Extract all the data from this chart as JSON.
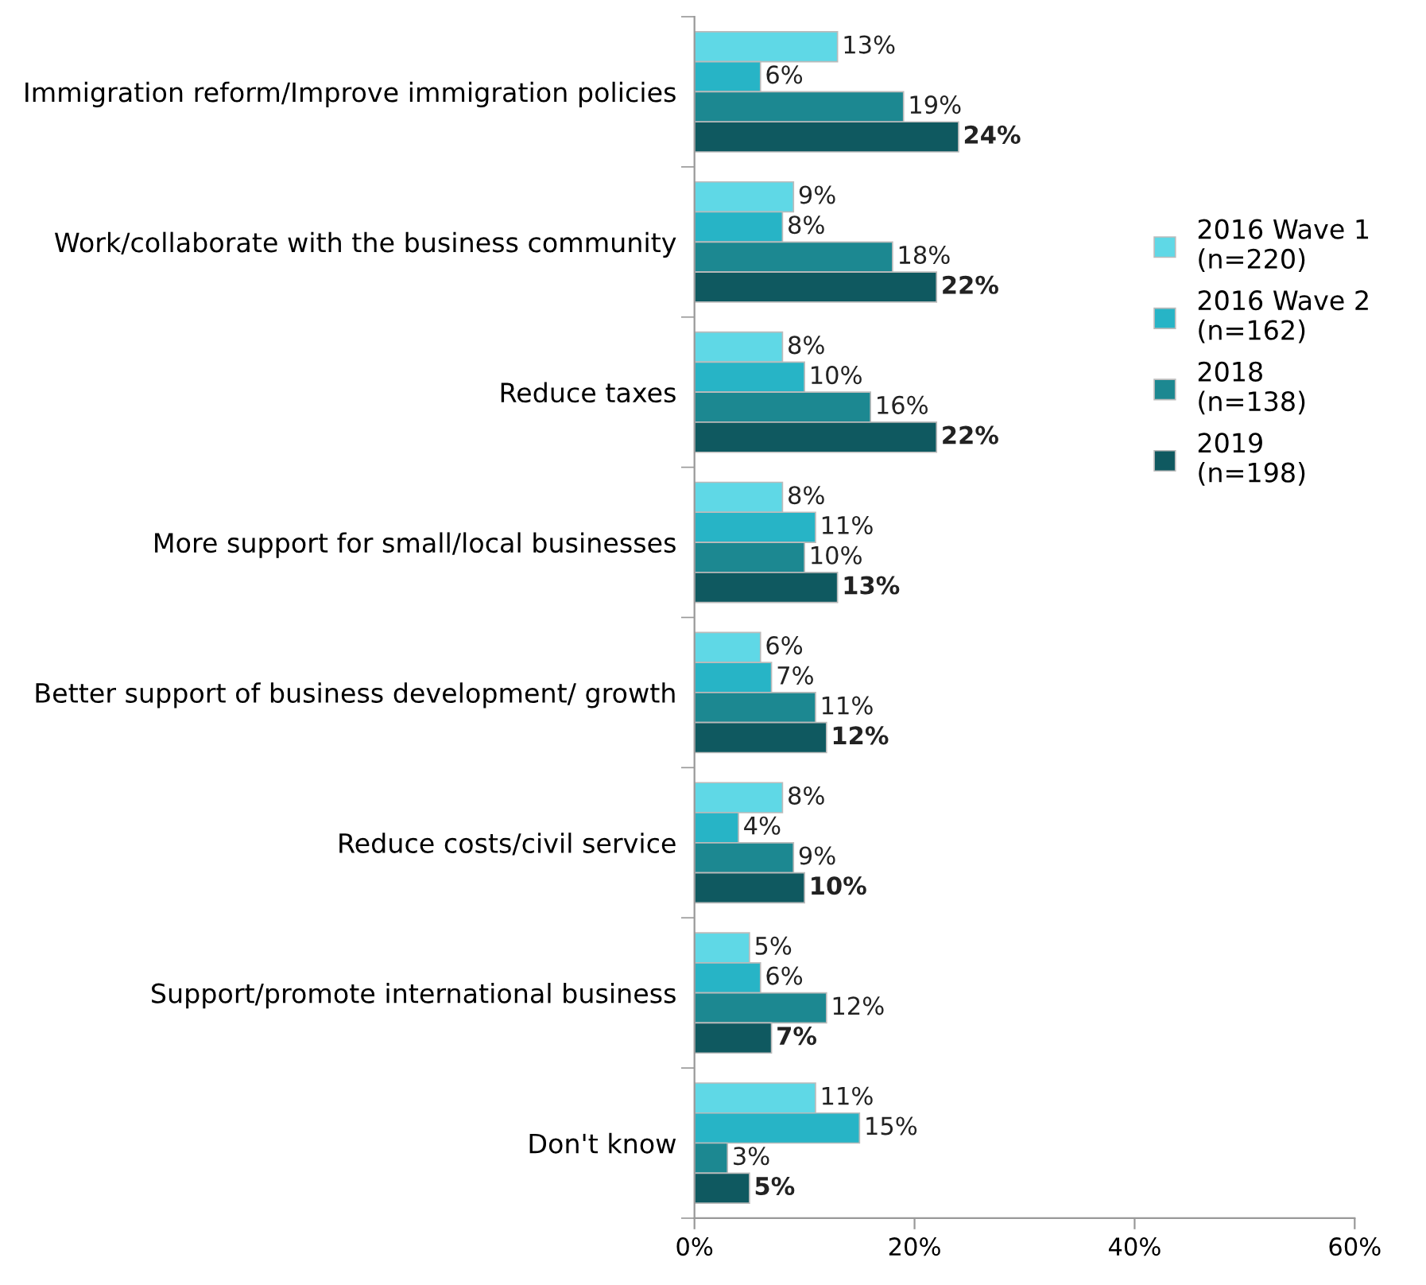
{
  "chart_data": {
    "type": "bar",
    "orientation": "horizontal",
    "categories": [
      "Immigration reform/Improve immigration policies",
      "Work/collaborate with the business community",
      "Reduce taxes",
      "More support for small/local businesses",
      "Better support of business development/ growth",
      "Reduce costs/civil service",
      "Support/promote international business",
      "Don't know"
    ],
    "series": [
      {
        "name": "2016 Wave 1\n(n=220)",
        "color": "#5fd8e6",
        "values": [
          13,
          9,
          8,
          8,
          6,
          8,
          5,
          11
        ],
        "value_labels": [
          "13%",
          "9%",
          "8%",
          "8%",
          "6%",
          "8%",
          "5%",
          "11%"
        ]
      },
      {
        "name": "2016 Wave 2\n(n=162)",
        "color": "#27b4c6",
        "values": [
          6,
          8,
          10,
          11,
          7,
          4,
          6,
          15
        ],
        "value_labels": [
          "6%",
          "8%",
          "10%",
          "11%",
          "7%",
          "4%",
          "6%",
          "15%"
        ]
      },
      {
        "name": "2018\n(n=138)",
        "color": "#1c8891",
        "values": [
          19,
          18,
          16,
          10,
          11,
          9,
          12,
          3
        ],
        "value_labels": [
          "19%",
          "18%",
          "16%",
          "10%",
          "11%",
          "9%",
          "12%",
          "3%"
        ]
      },
      {
        "name": "2019\n(n=198)",
        "color": "#0f5960",
        "values": [
          24,
          22,
          22,
          13,
          12,
          10,
          7,
          5
        ],
        "value_labels": [
          "24%",
          "22%",
          "22%",
          "13%",
          "12%",
          "10%",
          "7%",
          "5%"
        ]
      }
    ],
    "xlim": [
      0,
      60
    ],
    "xticks": [
      {
        "value": 0,
        "label": "0%"
      },
      {
        "value": 20,
        "label": "20%"
      },
      {
        "value": 40,
        "label": "40%"
      },
      {
        "value": 60,
        "label": "60%"
      }
    ],
    "grid": false,
    "legend": "right"
  }
}
